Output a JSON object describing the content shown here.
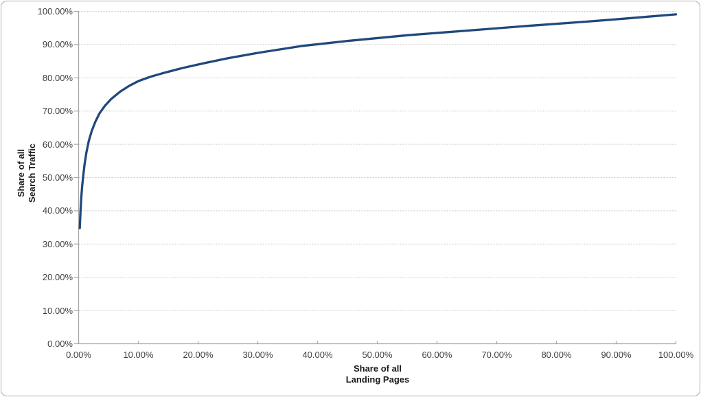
{
  "chart": {
    "y_axis": {
      "title_line1": "Share of all",
      "title_line2": "Search Traffic"
    },
    "x_axis": {
      "title_line1": "Share of all",
      "title_line2": "Landing Pages"
    }
  },
  "chart_data": {
    "type": "line",
    "title": "",
    "xlabel": "Share of all Landing Pages",
    "ylabel": "Share of all Search Traffic",
    "xlim": [
      0,
      100
    ],
    "ylim": [
      0,
      100
    ],
    "x_tick_labels": [
      "0.00%",
      "10.00%",
      "20.00%",
      "30.00%",
      "40.00%",
      "50.00%",
      "60.00%",
      "70.00%",
      "80.00%",
      "90.00%",
      "100.00%"
    ],
    "y_tick_labels": [
      "0.00%",
      "10.00%",
      "20.00%",
      "30.00%",
      "40.00%",
      "50.00%",
      "60.00%",
      "70.00%",
      "80.00%",
      "90.00%",
      "100.00%"
    ],
    "grid": "horizontal dashed",
    "legend": "none",
    "series": [
      {
        "x": [
          0.2,
          0.3,
          0.45,
          0.6,
          0.8,
          1.0,
          1.3,
          1.7,
          2.2,
          2.8,
          3.5,
          4.4,
          5.5,
          7.0,
          8.5,
          10,
          12,
          14.5,
          17.5,
          21,
          25,
          30,
          37.5,
          45,
          55,
          65,
          75,
          85,
          92,
          100
        ],
        "y": [
          34.8,
          39.0,
          44.0,
          47.5,
          51.0,
          54.0,
          57.5,
          61.0,
          64.0,
          66.8,
          69.3,
          71.6,
          73.7,
          75.9,
          77.6,
          79.0,
          80.3,
          81.6,
          83.0,
          84.4,
          85.9,
          87.5,
          89.6,
          91.1,
          92.8,
          94.2,
          95.6,
          96.9,
          97.9,
          99.1
        ]
      }
    ]
  },
  "colors": {
    "line": "#1F497D",
    "gridline": "#C9C9C9",
    "axis": "#A6A6A6",
    "tick_label": "#3F3F3F",
    "axis_title": "#1A1A1A",
    "border": "#ABABAB",
    "background": "#FFFFFF"
  }
}
